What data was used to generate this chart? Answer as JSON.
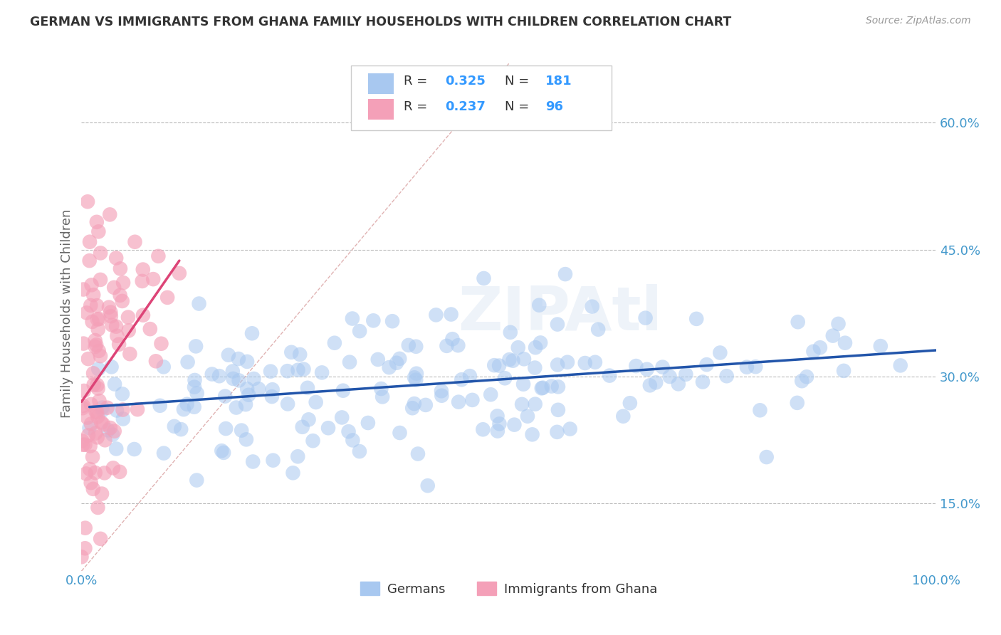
{
  "title": "GERMAN VS IMMIGRANTS FROM GHANA FAMILY HOUSEHOLDS WITH CHILDREN CORRELATION CHART",
  "source": "Source: ZipAtlas.com",
  "ylabel": "Family Households with Children",
  "ytick_labels": [
    "15.0%",
    "30.0%",
    "45.0%",
    "60.0%"
  ],
  "ytick_values": [
    0.15,
    0.3,
    0.45,
    0.6
  ],
  "xlim": [
    0.0,
    1.0
  ],
  "ylim": [
    0.07,
    0.68
  ],
  "blue_R": 0.325,
  "blue_N": 181,
  "pink_R": 0.237,
  "pink_N": 96,
  "blue_color": "#A8C8F0",
  "pink_color": "#F4A0B8",
  "blue_line_color": "#2255AA",
  "pink_line_color": "#DD4477",
  "diagonal_color": "#DDAAAA",
  "legend_label_blue": "Germans",
  "legend_label_pink": "Immigrants from Ghana",
  "watermark": "ZIPAtl",
  "blue_scatter_seed": 42,
  "pink_scatter_seed": 7,
  "grid_color": "#BBBBBB",
  "background_color": "#FFFFFF",
  "title_color": "#333333",
  "axis_label_color": "#666666",
  "tick_label_color": "#4499CC",
  "legend_text_color": "#333333",
  "legend_value_color": "#3399FF"
}
